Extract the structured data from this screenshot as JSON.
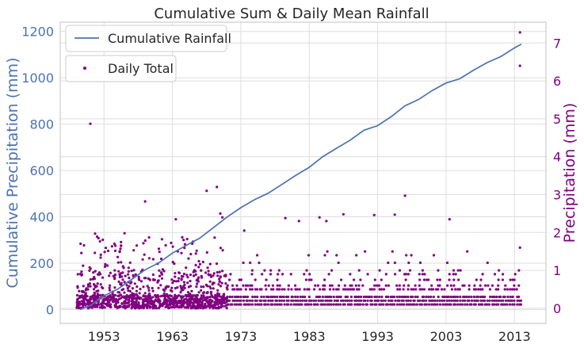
{
  "chart_data": {
    "type": "line+scatter",
    "title": "Cumulative Sum & Daily Mean Rainfall",
    "xlabel": "",
    "x_ticks": [
      "1953",
      "1963",
      "1973",
      "1983",
      "1993",
      "2003",
      "2013"
    ],
    "x_range": [
      1946.6,
      2017.6
    ],
    "left_axis": {
      "label": "Cumulative Precipitation (mm)",
      "range": [
        -60,
        1240
      ],
      "ticks": [
        0,
        200,
        400,
        600,
        800,
        1000,
        1200
      ],
      "color": "#4c72b0"
    },
    "right_axis": {
      "label": "Precipitation (mm)",
      "range": [
        -0.4,
        7.55
      ],
      "ticks": [
        0,
        1,
        2,
        3,
        4,
        5,
        6,
        7
      ],
      "color": "#800080"
    },
    "grid": true,
    "series": [
      {
        "name": "Cumulative Rainfall",
        "type": "line",
        "axis": "left",
        "color": "#4c72b0",
        "x": [
          1949.5,
          1951,
          1953,
          1955,
          1957,
          1959,
          1961,
          1963,
          1965,
          1967,
          1969,
          1971,
          1973,
          1975,
          1977,
          1979,
          1981,
          1983,
          1985,
          1987,
          1989,
          1991,
          1993,
          1995,
          1997,
          1999,
          2001,
          2003,
          2005,
          2007,
          2009,
          2011,
          2013,
          2014
        ],
        "y": [
          0,
          20,
          55,
          90,
          130,
          168,
          205,
          242,
          275,
          312,
          350,
          400,
          442,
          470,
          505,
          540,
          575,
          618,
          658,
          695,
          735,
          770,
          795,
          835,
          875,
          910,
          945,
          975,
          1000,
          1030,
          1065,
          1095,
          1125,
          1145
        ]
      },
      {
        "name": "Daily Total",
        "type": "scatter",
        "axis": "right",
        "color": "#800080",
        "notable_points": [
          {
            "x": 1951.0,
            "y": 4.87
          },
          {
            "x": 1951.7,
            "y": 1.97
          },
          {
            "x": 1952.2,
            "y": 1.85
          },
          {
            "x": 1959.0,
            "y": 2.82
          },
          {
            "x": 1956.0,
            "y": 1.98
          },
          {
            "x": 1963.5,
            "y": 2.35
          },
          {
            "x": 1968.0,
            "y": 3.1
          },
          {
            "x": 1969.5,
            "y": 3.2
          },
          {
            "x": 1970.0,
            "y": 2.5
          },
          {
            "x": 1970.3,
            "y": 2.4
          },
          {
            "x": 1973.5,
            "y": 2.05
          },
          {
            "x": 1979.5,
            "y": 2.38
          },
          {
            "x": 1981.5,
            "y": 2.3
          },
          {
            "x": 1984.5,
            "y": 2.4
          },
          {
            "x": 1985.5,
            "y": 2.3
          },
          {
            "x": 1988.0,
            "y": 2.48
          },
          {
            "x": 1992.5,
            "y": 2.46
          },
          {
            "x": 1995.5,
            "y": 2.47
          },
          {
            "x": 1997.0,
            "y": 2.97
          },
          {
            "x": 2003.5,
            "y": 2.35
          },
          {
            "x": 2013.8,
            "y": 7.28
          },
          {
            "x": 2013.8,
            "y": 6.4
          },
          {
            "x": 2013.8,
            "y": 1.6
          }
        ],
        "bulk_pattern": "dense dots 0–1.5 mm from 1949 to 1971; discrete rows at 0.1, 0.2, 0.3, 0.5, 0.6, 0.75, 0.9, 1.0 mm from 1971 to 2014"
      }
    ],
    "legend": [
      {
        "label": "Cumulative Rainfall",
        "position": "top-left"
      },
      {
        "label": "Daily Total",
        "position": "top-left"
      }
    ]
  }
}
